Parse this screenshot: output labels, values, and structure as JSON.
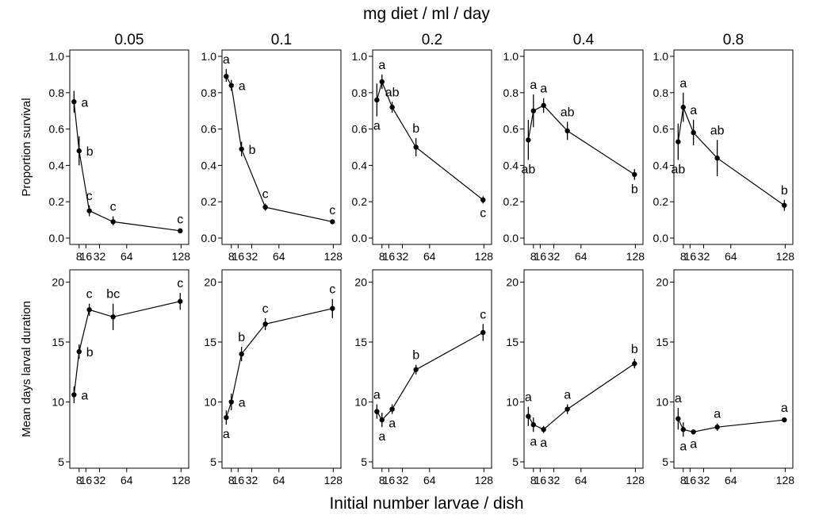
{
  "figure": {
    "top_title": "mg diet / ml / day",
    "x_title": "Initial number larvae / dish"
  },
  "chart_data": {
    "type": "line",
    "x_ticks": [
      8,
      16,
      32,
      64,
      128
    ],
    "x_tick_labels": [
      "8",
      "16",
      "32",
      "64",
      "128"
    ],
    "panel_titles": [
      "0.05",
      "0.1",
      "0.2",
      "0.4",
      "0.8"
    ],
    "rows": [
      {
        "ylabel": "Proportion survival",
        "ylim": [
          0,
          1
        ],
        "y_ticks": [
          0,
          0.2,
          0.4,
          0.6,
          0.8,
          1.0
        ],
        "y_tick_labels": [
          "0.0",
          "0.2",
          "0.4",
          "0.6",
          "0.8",
          "1.0"
        ],
        "panels": [
          {
            "title": "0.05",
            "points": [
              {
                "x": 2,
                "y": 0.75,
                "lo": 0.69,
                "hi": 0.81,
                "label": "a",
                "pos": "right"
              },
              {
                "x": 8,
                "y": 0.48,
                "lo": 0.4,
                "hi": 0.56,
                "label": "b",
                "pos": "right"
              },
              {
                "x": 20,
                "y": 0.15,
                "lo": 0.12,
                "hi": 0.18,
                "label": "c",
                "pos": "above"
              },
              {
                "x": 48,
                "y": 0.09,
                "lo": 0.07,
                "hi": 0.12,
                "label": "c",
                "pos": "above"
              },
              {
                "x": 127,
                "y": 0.04,
                "lo": 0.03,
                "hi": 0.05,
                "label": "c",
                "pos": "above"
              }
            ]
          },
          {
            "title": "0.1",
            "points": [
              {
                "x": 2,
                "y": 0.89,
                "lo": 0.86,
                "hi": 0.93,
                "label": "a",
                "pos": "above"
              },
              {
                "x": 8,
                "y": 0.84,
                "lo": 0.81,
                "hi": 0.87,
                "label": "a",
                "pos": "right"
              },
              {
                "x": 20,
                "y": 0.49,
                "lo": 0.45,
                "hi": 0.53,
                "label": "b",
                "pos": "right"
              },
              {
                "x": 48,
                "y": 0.17,
                "lo": 0.15,
                "hi": 0.19,
                "label": "c",
                "pos": "above"
              },
              {
                "x": 127,
                "y": 0.09,
                "lo": 0.08,
                "hi": 0.1,
                "label": "c",
                "pos": "above"
              }
            ]
          },
          {
            "title": "0.2",
            "points": [
              {
                "x": 2,
                "y": 0.76,
                "lo": 0.67,
                "hi": 0.85,
                "label": "a",
                "pos": "below"
              },
              {
                "x": 8,
                "y": 0.86,
                "lo": 0.82,
                "hi": 0.9,
                "label": "a",
                "pos": "above"
              },
              {
                "x": 20,
                "y": 0.72,
                "lo": 0.69,
                "hi": 0.75,
                "label": "ab",
                "pos": "above"
              },
              {
                "x": 48,
                "y": 0.5,
                "lo": 0.45,
                "hi": 0.55,
                "label": "b",
                "pos": "above"
              },
              {
                "x": 127,
                "y": 0.21,
                "lo": 0.19,
                "hi": 0.23,
                "label": "c",
                "pos": "below"
              }
            ]
          },
          {
            "title": "0.4",
            "points": [
              {
                "x": 2,
                "y": 0.54,
                "lo": 0.43,
                "hi": 0.65,
                "label": "ab",
                "pos": "below"
              },
              {
                "x": 8,
                "y": 0.7,
                "lo": 0.61,
                "hi": 0.79,
                "label": "a",
                "pos": "above"
              },
              {
                "x": 20,
                "y": 0.73,
                "lo": 0.69,
                "hi": 0.77,
                "label": "a",
                "pos": "above"
              },
              {
                "x": 48,
                "y": 0.59,
                "lo": 0.54,
                "hi": 0.64,
                "label": "ab",
                "pos": "above"
              },
              {
                "x": 127,
                "y": 0.35,
                "lo": 0.32,
                "hi": 0.38,
                "label": "b",
                "pos": "below"
              }
            ]
          },
          {
            "title": "0.8",
            "points": [
              {
                "x": 2,
                "y": 0.53,
                "lo": 0.43,
                "hi": 0.63,
                "label": "ab",
                "pos": "below"
              },
              {
                "x": 8,
                "y": 0.72,
                "lo": 0.64,
                "hi": 0.8,
                "label": "a",
                "pos": "above"
              },
              {
                "x": 20,
                "y": 0.58,
                "lo": 0.51,
                "hi": 0.65,
                "label": "a",
                "pos": "above"
              },
              {
                "x": 48,
                "y": 0.44,
                "lo": 0.34,
                "hi": 0.54,
                "label": "ab",
                "pos": "above"
              },
              {
                "x": 127,
                "y": 0.18,
                "lo": 0.15,
                "hi": 0.21,
                "label": "b",
                "pos": "above"
              }
            ]
          }
        ]
      },
      {
        "ylabel": "Mean days larval duration",
        "ylim": [
          5,
          20.5
        ],
        "y_ticks": [
          5,
          10,
          15,
          20
        ],
        "y_tick_labels": [
          "5",
          "10",
          "15",
          "20"
        ],
        "panels": [
          {
            "title": "0.05",
            "points": [
              {
                "x": 2,
                "y": 10.6,
                "lo": 9.9,
                "hi": 11.3,
                "label": "a",
                "pos": "right"
              },
              {
                "x": 8,
                "y": 14.2,
                "lo": 13.6,
                "hi": 14.8,
                "label": "b",
                "pos": "right"
              },
              {
                "x": 20,
                "y": 17.7,
                "lo": 17.2,
                "hi": 18.2,
                "label": "c",
                "pos": "above"
              },
              {
                "x": 48,
                "y": 17.1,
                "lo": 16.0,
                "hi": 18.2,
                "label": "bc",
                "pos": "above"
              },
              {
                "x": 127,
                "y": 18.4,
                "lo": 17.7,
                "hi": 19.1,
                "label": "c",
                "pos": "above"
              }
            ]
          },
          {
            "title": "0.1",
            "points": [
              {
                "x": 2,
                "y": 8.7,
                "lo": 8.1,
                "hi": 9.3,
                "label": "a",
                "pos": "below"
              },
              {
                "x": 8,
                "y": 10.0,
                "lo": 9.3,
                "hi": 10.7,
                "label": "a",
                "pos": "right"
              },
              {
                "x": 20,
                "y": 14.0,
                "lo": 13.4,
                "hi": 14.6,
                "label": "b",
                "pos": "above"
              },
              {
                "x": 48,
                "y": 16.5,
                "lo": 16.0,
                "hi": 17.0,
                "label": "c",
                "pos": "above"
              },
              {
                "x": 127,
                "y": 17.8,
                "lo": 17.0,
                "hi": 18.6,
                "label": "c",
                "pos": "above"
              }
            ]
          },
          {
            "title": "0.2",
            "points": [
              {
                "x": 2,
                "y": 9.2,
                "lo": 8.6,
                "hi": 9.8,
                "label": "a",
                "pos": "above"
              },
              {
                "x": 8,
                "y": 8.5,
                "lo": 7.9,
                "hi": 9.1,
                "label": "a",
                "pos": "below"
              },
              {
                "x": 20,
                "y": 9.4,
                "lo": 9.0,
                "hi": 9.8,
                "label": "a",
                "pos": "below"
              },
              {
                "x": 48,
                "y": 12.7,
                "lo": 12.3,
                "hi": 13.1,
                "label": "b",
                "pos": "above"
              },
              {
                "x": 127,
                "y": 15.8,
                "lo": 15.1,
                "hi": 16.5,
                "label": "c",
                "pos": "above"
              }
            ]
          },
          {
            "title": "0.4",
            "points": [
              {
                "x": 2,
                "y": 8.8,
                "lo": 8.0,
                "hi": 9.6,
                "label": "a",
                "pos": "above"
              },
              {
                "x": 8,
                "y": 8.1,
                "lo": 7.5,
                "hi": 8.7,
                "label": "a",
                "pos": "below"
              },
              {
                "x": 20,
                "y": 7.7,
                "lo": 7.4,
                "hi": 8.0,
                "label": "a",
                "pos": "below"
              },
              {
                "x": 48,
                "y": 9.4,
                "lo": 9.0,
                "hi": 9.8,
                "label": "a",
                "pos": "above"
              },
              {
                "x": 127,
                "y": 13.2,
                "lo": 12.8,
                "hi": 13.6,
                "label": "b",
                "pos": "above"
              }
            ]
          },
          {
            "title": "0.8",
            "points": [
              {
                "x": 2,
                "y": 8.6,
                "lo": 7.7,
                "hi": 9.5,
                "label": "a",
                "pos": "above"
              },
              {
                "x": 8,
                "y": 7.7,
                "lo": 7.1,
                "hi": 8.3,
                "label": "a",
                "pos": "below"
              },
              {
                "x": 20,
                "y": 7.5,
                "lo": 7.3,
                "hi": 7.7,
                "label": "a",
                "pos": "below"
              },
              {
                "x": 48,
                "y": 7.9,
                "lo": 7.6,
                "hi": 8.2,
                "label": "a",
                "pos": "above"
              },
              {
                "x": 127,
                "y": 8.5,
                "lo": 8.3,
                "hi": 8.7,
                "label": "a",
                "pos": "above"
              }
            ]
          }
        ]
      }
    ]
  }
}
